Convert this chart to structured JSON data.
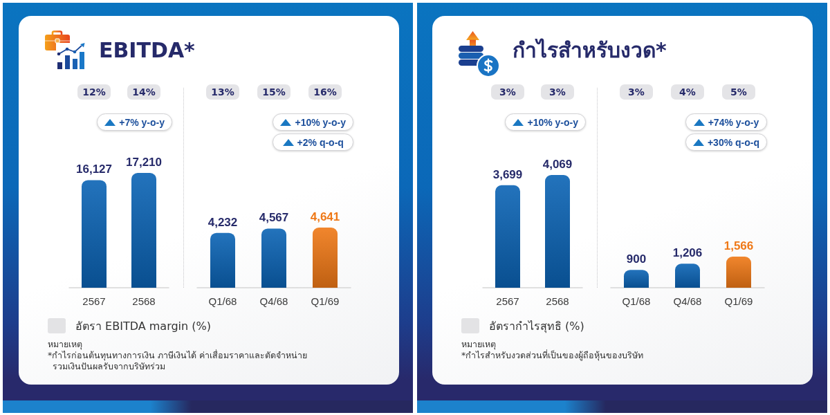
{
  "chart_data": [
    {
      "type": "bar",
      "title": "EBITDA*",
      "categories": [
        "2567",
        "2568"
      ],
      "values": [
        16127,
        17210
      ],
      "value_labels": [
        "16,127",
        "17,210"
      ],
      "colors": [
        "#0b63b4",
        "#0b63b4"
      ],
      "tick_labels": "x",
      "annotations": [
        "12%",
        "14%",
        "+7% y-o-y"
      ]
    },
    {
      "type": "bar",
      "categories": [
        "Q1/68",
        "Q4/68",
        "Q1/69"
      ],
      "values": [
        4232,
        4567,
        4641
      ],
      "value_labels": [
        "4,232",
        "4,567",
        "4,641"
      ],
      "colors": [
        "#0b63b4",
        "#0b63b4",
        "#ef7816"
      ],
      "tick_labels": "x",
      "annotations": [
        "13%",
        "15%",
        "16%",
        "+10% y-o-y",
        "+2% q-o-q"
      ]
    },
    {
      "type": "bar",
      "title": "กำไรสำหรับงวด*",
      "categories": [
        "2567",
        "2568"
      ],
      "values": [
        3699,
        4069
      ],
      "value_labels": [
        "3,699",
        "4,069"
      ],
      "colors": [
        "#0b63b4",
        "#0b63b4"
      ],
      "tick_labels": "x",
      "annotations": [
        "3%",
        "3%",
        "+10% y-o-y"
      ]
    },
    {
      "type": "bar",
      "categories": [
        "Q1/68",
        "Q4/68",
        "Q1/69"
      ],
      "values": [
        900,
        1206,
        1566
      ],
      "value_labels": [
        "900",
        "1,206",
        "1,566"
      ],
      "colors": [
        "#0b63b4",
        "#0b63b4",
        "#ef7816"
      ],
      "tick_labels": "x",
      "annotations": [
        "3%",
        "4%",
        "5%",
        "+74% y-o-y",
        "+30% q-o-q"
      ]
    },
    {
      "type": "other",
      "annotations": [
        "อัตรา EBITDA margin (%)",
        "หมายเหตุ",
        "*กำไรก่อนต้นทุนทางการเงิน ภาษีเงินได้ ค่าเสื่อมราคาและตัดจำหน่าย รวมเงินปันผลรับจากบริษัทร่วม"
      ]
    },
    {
      "type": "other",
      "annotations": [
        "อัตรากำไรสุทธิ (%)",
        "หมายเหตุ",
        "*กำไรสำหรับงวดส่วนที่เป็นของผู้ถือหุ้นของบริษัท"
      ]
    }
  ]
}
